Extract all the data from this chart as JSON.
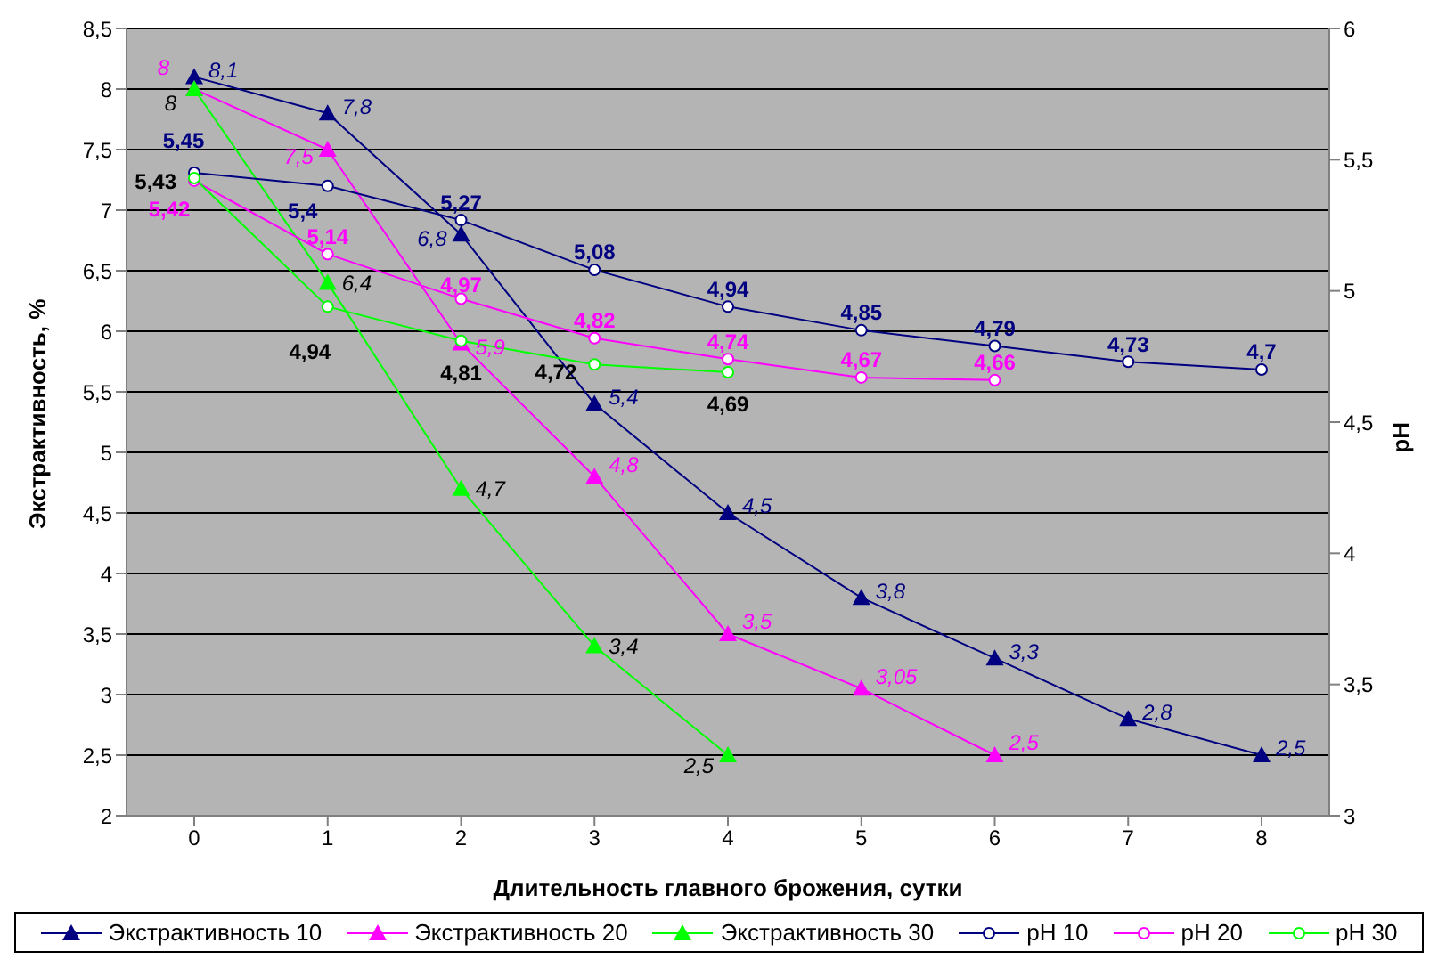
{
  "chart_data": {
    "type": "line",
    "xlabel": "Длительность главного брожения, сутки",
    "ylabel": "Экстрактивность, %",
    "y2label": "pH",
    "categories": [
      "0",
      "1",
      "2",
      "3",
      "4",
      "5",
      "6",
      "7",
      "8"
    ],
    "ylim": [
      2,
      8.5
    ],
    "yticks": [
      {
        "value": 2,
        "label": "2"
      },
      {
        "value": 2.5,
        "label": "2,5"
      },
      {
        "value": 3,
        "label": "3"
      },
      {
        "value": 3.5,
        "label": "3,5"
      },
      {
        "value": 4,
        "label": "4"
      },
      {
        "value": 4.5,
        "label": "4,5"
      },
      {
        "value": 5,
        "label": "5"
      },
      {
        "value": 5.5,
        "label": "5,5"
      },
      {
        "value": 6,
        "label": "6"
      },
      {
        "value": 6.5,
        "label": "6,5"
      },
      {
        "value": 7,
        "label": "7"
      },
      {
        "value": 7.5,
        "label": "7,5"
      },
      {
        "value": 8,
        "label": "8"
      },
      {
        "value": 8.5,
        "label": "8,5"
      }
    ],
    "y2lim": [
      3,
      6
    ],
    "y2ticks": [
      {
        "value": 3,
        "label": "3"
      },
      {
        "value": 3.5,
        "label": "3,5"
      },
      {
        "value": 4,
        "label": "4"
      },
      {
        "value": 4.5,
        "label": "4,5"
      },
      {
        "value": 5,
        "label": "5"
      },
      {
        "value": 5.5,
        "label": "5,5"
      },
      {
        "value": 6,
        "label": "6"
      }
    ],
    "grid": "y",
    "legend": "bottom",
    "series": [
      {
        "name": "Экстрактивность 10",
        "color": "#000080",
        "marker": "triangle",
        "values": [
          8.1,
          7.8,
          6.8,
          5.4,
          4.5,
          3.8,
          3.3,
          2.8,
          2.5
        ],
        "value_labels": [
          "8,1",
          "7,8",
          "6,8",
          "5,4",
          "4,5",
          "3,8",
          "3,3",
          "2,8",
          "2,5"
        ]
      },
      {
        "name": "Экстрактивность 20",
        "color": "#ff00ff",
        "marker": "triangle",
        "values": [
          8,
          7.5,
          5.9,
          4.8,
          3.5,
          3.05,
          2.5,
          null,
          null
        ],
        "value_labels": [
          "8",
          "7,5",
          "5,9",
          "4,8",
          "3,5",
          "3,05",
          "2,5",
          null,
          null
        ]
      },
      {
        "name": "Экстрактивность 30",
        "color": "#00ff00",
        "marker": "triangle",
        "values": [
          8,
          6.4,
          4.7,
          3.4,
          2.5,
          null,
          null,
          null,
          null
        ],
        "value_labels": [
          "8",
          "6,4",
          "4,7",
          "3,4",
          "2,5",
          null,
          null,
          null,
          null
        ]
      },
      {
        "name": "pH 10",
        "color": "#000080",
        "marker": "circle",
        "axis": "y2",
        "values": [
          5.45,
          5.4,
          5.27,
          5.08,
          4.94,
          4.85,
          4.79,
          4.73,
          4.7
        ],
        "value_labels": [
          "5,45",
          "5,4",
          "5,27",
          "5,08",
          "4,94",
          "4,85",
          "4,79",
          "4,73",
          "4,7"
        ]
      },
      {
        "name": "pH 20",
        "color": "#ff00ff",
        "marker": "circle",
        "axis": "y2",
        "values": [
          5.42,
          5.14,
          4.97,
          4.82,
          4.74,
          4.67,
          4.66,
          null,
          null
        ],
        "value_labels": [
          "5,42",
          "5,14",
          "4,97",
          "4,82",
          "4,74",
          "4,67",
          "4,66",
          null,
          null
        ]
      },
      {
        "name": "pH 30",
        "color": "#00ff00",
        "marker": "circle",
        "axis": "y2",
        "values": [
          5.43,
          4.94,
          4.81,
          4.72,
          4.69,
          null,
          null,
          null,
          null
        ],
        "value_labels": [
          "5,43",
          "4,94",
          "4,81",
          "4,72",
          "4,69",
          null,
          null,
          null,
          null
        ]
      }
    ]
  }
}
